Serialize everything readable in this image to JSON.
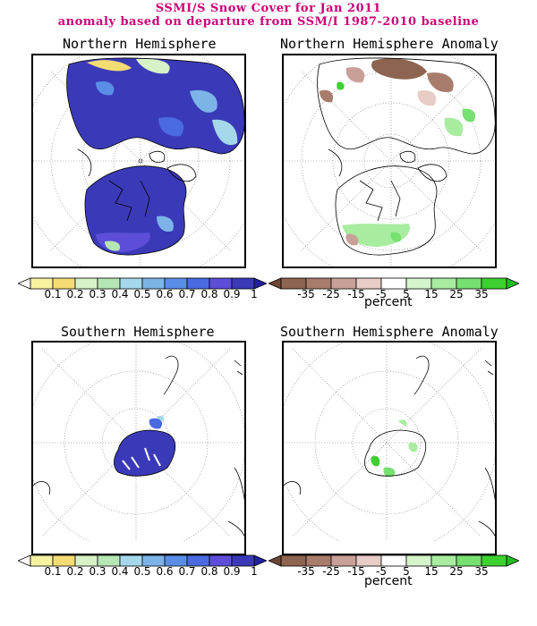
{
  "title_line1": "SSMI/S Snow Cover for Jan 2011",
  "title_line2": "anomaly based on departure from SSM/I 1987-2010 baseline",
  "panels": {
    "nh": "Northern Hemisphere",
    "nh_anom": "Northern Hemisphere Anomaly",
    "sh": "Southern Hemisphere",
    "sh_anom": "Southern Hemisphere Anomaly"
  },
  "cover_scale": {
    "ticks": [
      "0.1",
      "0.2",
      "0.3",
      "0.4",
      "0.5",
      "0.6",
      "0.7",
      "0.8",
      "0.9",
      "1"
    ],
    "colors": [
      "#f6f2a0",
      "#f4dc74",
      "#d8f2c8",
      "#b6e6b4",
      "#a4d8ea",
      "#7cb4e8",
      "#5a8ee6",
      "#4a6ae0",
      "#5c4ed8",
      "#3a3ab8"
    ]
  },
  "anomaly_scale": {
    "ticks": [
      "-35",
      "-25",
      "-15",
      "-5",
      "5",
      "15",
      "25",
      "35"
    ],
    "unit": "percent",
    "colors": [
      "#8c6450",
      "#a87c6c",
      "#c8a098",
      "#e8ccc6",
      "#ffffff",
      "#d4f4cc",
      "#a8ecA0",
      "#76e070",
      "#3cd030"
    ]
  },
  "colors": {
    "title": "#cc0077",
    "land_outline": "#000000",
    "grid": "#777777"
  }
}
